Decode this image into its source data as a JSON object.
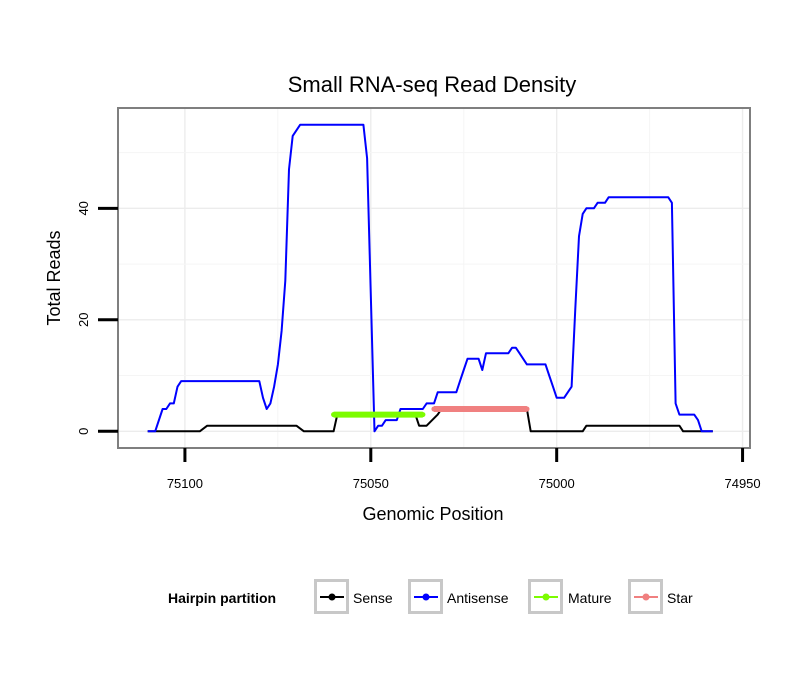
{
  "chart_data": {
    "type": "line",
    "title": "Small RNA-seq Read Density",
    "xlabel": "Genomic Position",
    "ylabel": "Total Reads",
    "x_reversed": true,
    "xlim": [
      75118,
      74948
    ],
    "ylim": [
      -3,
      58
    ],
    "x_ticks": [
      75100,
      75050,
      75000,
      74950
    ],
    "x_tick_labels": [
      "75100",
      "75050",
      "75000",
      "74950"
    ],
    "y_ticks": [
      0,
      20,
      40
    ],
    "y_tick_labels": [
      "0",
      "20",
      "40"
    ],
    "grid": true,
    "legend": {
      "title": "Hairpin partition",
      "position": "bottom",
      "entries": [
        {
          "label": "Sense",
          "color": "#000000"
        },
        {
          "label": "Antisense",
          "color": "#0000ff"
        },
        {
          "label": "Mature",
          "color": "#7cfc00"
        },
        {
          "label": "Star",
          "color": "#f08080"
        }
      ]
    },
    "series": [
      {
        "name": "Sense",
        "color": "#000000",
        "points": [
          [
            75110,
            0
          ],
          [
            75096,
            0
          ],
          [
            75094,
            1
          ],
          [
            75070,
            1
          ],
          [
            75068,
            0
          ],
          [
            75060,
            0
          ],
          [
            75059,
            3
          ],
          [
            75046,
            3
          ],
          [
            75038,
            3
          ],
          [
            75037,
            1
          ],
          [
            75035,
            1
          ],
          [
            75032,
            3
          ],
          [
            75031,
            4
          ],
          [
            75008,
            4
          ],
          [
            75007,
            0
          ],
          [
            74993,
            0
          ],
          [
            74992,
            1
          ],
          [
            74967,
            1
          ],
          [
            74966,
            0
          ],
          [
            74958,
            0
          ]
        ]
      },
      {
        "name": "Antisense",
        "color": "#0000ff",
        "points": [
          [
            75110,
            0
          ],
          [
            75108,
            0
          ],
          [
            75106,
            4
          ],
          [
            75105,
            4
          ],
          [
            75104,
            5
          ],
          [
            75103,
            5
          ],
          [
            75102,
            8
          ],
          [
            75101,
            9
          ],
          [
            75080,
            9
          ],
          [
            75079,
            6
          ],
          [
            75078,
            4
          ],
          [
            75077,
            5
          ],
          [
            75076,
            8
          ],
          [
            75075,
            12
          ],
          [
            75074,
            18
          ],
          [
            75073,
            27
          ],
          [
            75072,
            47
          ],
          [
            75071,
            53
          ],
          [
            75069,
            55
          ],
          [
            75052,
            55
          ],
          [
            75051,
            49
          ],
          [
            75049,
            0
          ],
          [
            75048,
            1
          ],
          [
            75047,
            1
          ],
          [
            75046,
            2
          ],
          [
            75043,
            2
          ],
          [
            75042,
            4
          ],
          [
            75036,
            4
          ],
          [
            75035,
            5
          ],
          [
            75033,
            5
          ],
          [
            75032,
            7
          ],
          [
            75027,
            7
          ],
          [
            75026,
            9
          ],
          [
            75025,
            11
          ],
          [
            75024,
            13
          ],
          [
            75021,
            13
          ],
          [
            75020,
            11
          ],
          [
            75019,
            14
          ],
          [
            75013,
            14
          ],
          [
            75012,
            15
          ],
          [
            75011,
            15
          ],
          [
            75010,
            14
          ],
          [
            75009,
            13
          ],
          [
            75008,
            12
          ],
          [
            75003,
            12
          ],
          [
            75002,
            10
          ],
          [
            75001,
            8
          ],
          [
            75000,
            6
          ],
          [
            74998,
            6
          ],
          [
            74997,
            7
          ],
          [
            74996,
            8
          ],
          [
            74995,
            22
          ],
          [
            74994,
            35
          ],
          [
            74993,
            39
          ],
          [
            74992,
            40
          ],
          [
            74990,
            40
          ],
          [
            74989,
            41
          ],
          [
            74987,
            41
          ],
          [
            74986,
            42
          ],
          [
            74970,
            42
          ],
          [
            74969,
            41
          ],
          [
            74968,
            5
          ],
          [
            74967,
            3
          ],
          [
            74963,
            3
          ],
          [
            74962,
            2
          ],
          [
            74961,
            0
          ],
          [
            74958,
            0
          ]
        ]
      },
      {
        "name": "Mature",
        "color": "#7cfc00",
        "points": [
          [
            75060,
            3
          ],
          [
            75036,
            3
          ]
        ]
      },
      {
        "name": "Star",
        "color": "#f08080",
        "points": [
          [
            75033,
            4
          ],
          [
            75008,
            4
          ]
        ]
      }
    ]
  }
}
